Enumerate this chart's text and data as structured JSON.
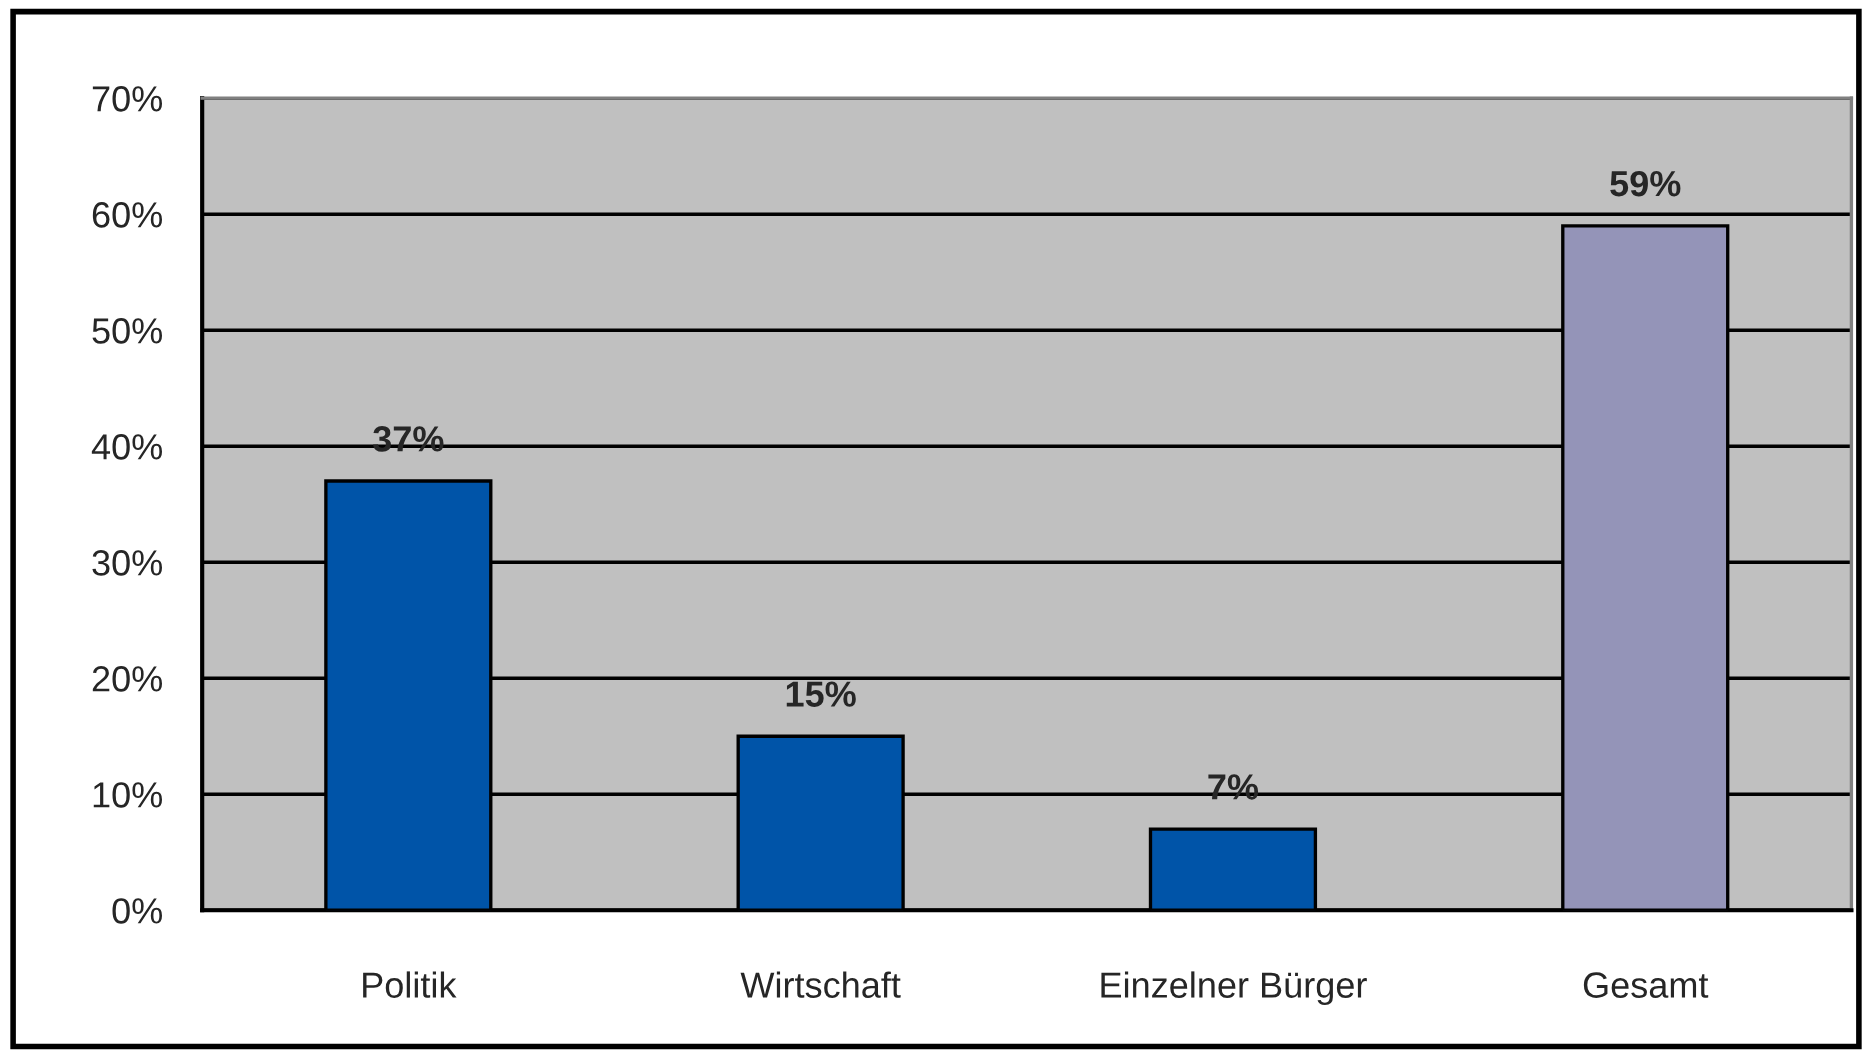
{
  "chart_data": {
    "type": "bar",
    "categories": [
      "Politik",
      "Wirtschaft",
      "Einzelner Bürger",
      "Gesamt"
    ],
    "values": [
      37,
      15,
      7,
      59
    ],
    "colors": [
      "#0054a8",
      "#0054a8",
      "#0054a8",
      "#9494b8"
    ],
    "value_labels": [
      "37%",
      "15%",
      "7%",
      "59%"
    ],
    "ylim": [
      0,
      70
    ],
    "yticks": [
      {
        "value": 0,
        "label": "0%"
      },
      {
        "value": 10,
        "label": "10%"
      },
      {
        "value": 20,
        "label": "20%"
      },
      {
        "value": 30,
        "label": "30%"
      },
      {
        "value": 40,
        "label": "40%"
      },
      {
        "value": 50,
        "label": "50%"
      },
      {
        "value": 60,
        "label": "60%"
      },
      {
        "value": 70,
        "label": "70%"
      }
    ],
    "grid": "y"
  }
}
